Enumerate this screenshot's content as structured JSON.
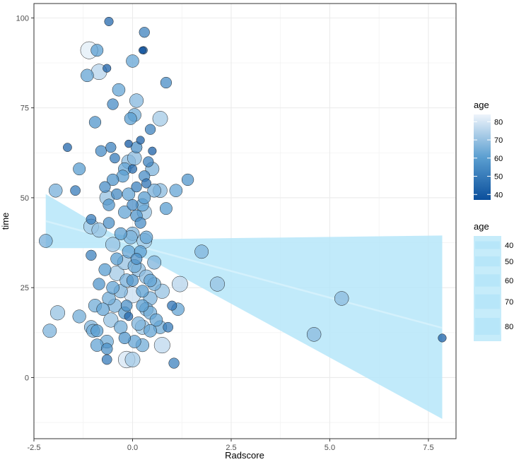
{
  "chart_data": {
    "type": "scatter",
    "xlabel": "Radscore",
    "ylabel": "time",
    "xlim": [
      -2.5,
      8.2
    ],
    "ylim": [
      -17,
      104
    ],
    "x_ticks": [
      {
        "value": -2.5,
        "label": "-2.5"
      },
      {
        "value": 0,
        "label": "0.0"
      },
      {
        "value": 2.5,
        "label": "2.5"
      },
      {
        "value": 5,
        "label": "5.0"
      },
      {
        "value": 7.5,
        "label": "7.5"
      }
    ],
    "y_ticks": [
      {
        "value": 0,
        "label": "0"
      },
      {
        "value": 25,
        "label": "25"
      },
      {
        "value": 50,
        "label": "50"
      },
      {
        "value": 75,
        "label": "75"
      },
      {
        "value": 100,
        "label": "100"
      }
    ],
    "color_legend": {
      "title": "age",
      "min": 37,
      "max": 84,
      "ticks": [
        {
          "value": 80,
          "label": "80"
        },
        {
          "value": 70,
          "label": "70"
        },
        {
          "value": 60,
          "label": "60"
        },
        {
          "value": 50,
          "label": "50"
        },
        {
          "value": 40,
          "label": "40"
        }
      ],
      "low_color": "#0b4f9c",
      "high_color": "#e9f1fb"
    },
    "size_legend": {
      "title": "age",
      "entries": [
        {
          "value": 40,
          "label": "40"
        },
        {
          "value": 50,
          "label": "50"
        },
        {
          "value": 60,
          "label": "60"
        },
        {
          "value": 70,
          "label": "70"
        },
        {
          "value": 80,
          "label": "80"
        }
      ],
      "fill": "#c6ecfa"
    },
    "regression": {
      "line": [
        {
          "x": -2.2,
          "y": 43.5
        },
        {
          "x": 7.85,
          "y": 13.8
        }
      ],
      "ci_upper": [
        {
          "x": -2.2,
          "y": 51
        },
        {
          "x": -0.5,
          "y": 40
        },
        {
          "x": 0.5,
          "y": 38.5
        },
        {
          "x": 7.85,
          "y": 39.5
        }
      ],
      "ci_lower": [
        {
          "x": -2.2,
          "y": 36
        },
        {
          "x": -0.5,
          "y": 36
        },
        {
          "x": 0.5,
          "y": 32.5
        },
        {
          "x": 7.85,
          "y": -11.5
        }
      ],
      "color": "#b6e6f9"
    },
    "points": [
      {
        "x": -0.6,
        "y": 99,
        "age": 45
      },
      {
        "x": 0.3,
        "y": 96,
        "age": 52
      },
      {
        "x": -1.1,
        "y": 91,
        "age": 82
      },
      {
        "x": -0.9,
        "y": 91,
        "age": 60
      },
      {
        "x": 0.25,
        "y": 91,
        "age": 38
      },
      {
        "x": 0.28,
        "y": 91,
        "age": 40
      },
      {
        "x": 0.0,
        "y": 88,
        "age": 62
      },
      {
        "x": -0.65,
        "y": 86,
        "age": 42
      },
      {
        "x": -1.15,
        "y": 84,
        "age": 62
      },
      {
        "x": -0.85,
        "y": 85,
        "age": 75
      },
      {
        "x": 0.85,
        "y": 82,
        "age": 55
      },
      {
        "x": -0.35,
        "y": 80,
        "age": 62
      },
      {
        "x": 0.1,
        "y": 77,
        "age": 67
      },
      {
        "x": -0.5,
        "y": 76,
        "age": 55
      },
      {
        "x": -0.05,
        "y": 72,
        "age": 60
      },
      {
        "x": 0.05,
        "y": 73,
        "age": 64
      },
      {
        "x": 0.7,
        "y": 72,
        "age": 72
      },
      {
        "x": -0.95,
        "y": 71,
        "age": 58
      },
      {
        "x": 0.45,
        "y": 69,
        "age": 52
      },
      {
        "x": 0.2,
        "y": 66,
        "age": 42
      },
      {
        "x": -0.1,
        "y": 65,
        "age": 40
      },
      {
        "x": -1.65,
        "y": 64,
        "age": 44
      },
      {
        "x": -0.55,
        "y": 64,
        "age": 52
      },
      {
        "x": 0.1,
        "y": 64,
        "age": 56
      },
      {
        "x": -0.8,
        "y": 63,
        "age": 55
      },
      {
        "x": 0.5,
        "y": 63,
        "age": 42
      },
      {
        "x": -0.45,
        "y": 61,
        "age": 50
      },
      {
        "x": -0.1,
        "y": 60,
        "age": 68
      },
      {
        "x": 0.05,
        "y": 61,
        "age": 68
      },
      {
        "x": 0.4,
        "y": 60,
        "age": 52
      },
      {
        "x": -0.2,
        "y": 58,
        "age": 62
      },
      {
        "x": 0.0,
        "y": 58,
        "age": 45
      },
      {
        "x": -1.35,
        "y": 58,
        "age": 60
      },
      {
        "x": 0.5,
        "y": 58,
        "age": 66
      },
      {
        "x": -0.25,
        "y": 56,
        "age": 60
      },
      {
        "x": 0.3,
        "y": 56,
        "age": 55
      },
      {
        "x": 1.4,
        "y": 55,
        "age": 58
      },
      {
        "x": -0.5,
        "y": 55,
        "age": 58
      },
      {
        "x": 0.35,
        "y": 54,
        "age": 48
      },
      {
        "x": -0.7,
        "y": 53,
        "age": 55
      },
      {
        "x": 0.1,
        "y": 53,
        "age": 52
      },
      {
        "x": -1.95,
        "y": 52,
        "age": 65
      },
      {
        "x": -1.45,
        "y": 52,
        "age": 50
      },
      {
        "x": 1.1,
        "y": 52,
        "age": 62
      },
      {
        "x": -0.4,
        "y": 51,
        "age": 54
      },
      {
        "x": -0.1,
        "y": 51,
        "age": 62
      },
      {
        "x": 0.55,
        "y": 52,
        "age": 65
      },
      {
        "x": 0.7,
        "y": 52,
        "age": 68
      },
      {
        "x": -0.65,
        "y": 50,
        "age": 70
      },
      {
        "x": 0.3,
        "y": 50,
        "age": 60
      },
      {
        "x": -0.6,
        "y": 48,
        "age": 58
      },
      {
        "x": 0.0,
        "y": 48,
        "age": 55
      },
      {
        "x": 0.25,
        "y": 48,
        "age": 62
      },
      {
        "x": 0.85,
        "y": 47,
        "age": 60
      },
      {
        "x": -0.2,
        "y": 46,
        "age": 62
      },
      {
        "x": 0.3,
        "y": 46,
        "age": 70
      },
      {
        "x": 0.1,
        "y": 45,
        "age": 58
      },
      {
        "x": -1.05,
        "y": 44,
        "age": 50
      },
      {
        "x": -0.6,
        "y": 43,
        "age": 56
      },
      {
        "x": 0.2,
        "y": 43,
        "age": 55
      },
      {
        "x": -1.05,
        "y": 42,
        "age": 72
      },
      {
        "x": -0.85,
        "y": 41,
        "age": 70
      },
      {
        "x": -0.3,
        "y": 40,
        "age": 60
      },
      {
        "x": 0.0,
        "y": 40,
        "age": 66
      },
      {
        "x": -0.05,
        "y": 39,
        "age": 66
      },
      {
        "x": 0.35,
        "y": 39,
        "age": 62
      },
      {
        "x": -2.2,
        "y": 38,
        "age": 65
      },
      {
        "x": 0.3,
        "y": 38,
        "age": 72
      },
      {
        "x": -0.5,
        "y": 37,
        "age": 70
      },
      {
        "x": -0.1,
        "y": 35,
        "age": 62
      },
      {
        "x": 0.2,
        "y": 35,
        "age": 60
      },
      {
        "x": 1.75,
        "y": 35,
        "age": 66
      },
      {
        "x": -1.05,
        "y": 34,
        "age": 52
      },
      {
        "x": -0.4,
        "y": 33,
        "age": 60
      },
      {
        "x": 0.1,
        "y": 33,
        "age": 56
      },
      {
        "x": -0.2,
        "y": 32,
        "age": 70
      },
      {
        "x": 0.55,
        "y": 32,
        "age": 66
      },
      {
        "x": 0.05,
        "y": 31,
        "age": 64
      },
      {
        "x": -0.7,
        "y": 30,
        "age": 60
      },
      {
        "x": 0.15,
        "y": 30,
        "age": 68
      },
      {
        "x": -0.4,
        "y": 29,
        "age": 72
      },
      {
        "x": 0.35,
        "y": 28,
        "age": 68
      },
      {
        "x": 0.45,
        "y": 27,
        "age": 62
      },
      {
        "x": -0.15,
        "y": 27,
        "age": 65
      },
      {
        "x": 0.0,
        "y": 27,
        "age": 58
      },
      {
        "x": -0.85,
        "y": 26,
        "age": 58
      },
      {
        "x": 1.2,
        "y": 26,
        "age": 75
      },
      {
        "x": 2.15,
        "y": 26,
        "age": 70
      },
      {
        "x": 0.55,
        "y": 26,
        "age": 64
      },
      {
        "x": -0.5,
        "y": 25,
        "age": 62
      },
      {
        "x": -0.3,
        "y": 24,
        "age": 66
      },
      {
        "x": 0.25,
        "y": 24,
        "age": 60
      },
      {
        "x": 0.75,
        "y": 24,
        "age": 70
      },
      {
        "x": 0.0,
        "y": 23,
        "age": 78
      },
      {
        "x": -0.6,
        "y": 22,
        "age": 64
      },
      {
        "x": 0.45,
        "y": 22,
        "age": 66
      },
      {
        "x": 5.3,
        "y": 22,
        "age": 68
      },
      {
        "x": -0.95,
        "y": 20,
        "age": 64
      },
      {
        "x": -0.45,
        "y": 20,
        "age": 66
      },
      {
        "x": -0.15,
        "y": 20,
        "age": 56
      },
      {
        "x": 0.25,
        "y": 20,
        "age": 60
      },
      {
        "x": 1.0,
        "y": 20,
        "age": 48
      },
      {
        "x": -0.75,
        "y": 19,
        "age": 62
      },
      {
        "x": 0.35,
        "y": 19,
        "age": 66
      },
      {
        "x": 1.15,
        "y": 19,
        "age": 62
      },
      {
        "x": -1.9,
        "y": 18,
        "age": 70
      },
      {
        "x": -0.2,
        "y": 18,
        "age": 60
      },
      {
        "x": 0.45,
        "y": 18,
        "age": 64
      },
      {
        "x": -1.35,
        "y": 17,
        "age": 64
      },
      {
        "x": -0.1,
        "y": 17,
        "age": 44
      },
      {
        "x": 0.6,
        "y": 16,
        "age": 62
      },
      {
        "x": -0.55,
        "y": 16,
        "age": 70
      },
      {
        "x": 0.15,
        "y": 15,
        "age": 66
      },
      {
        "x": -1.05,
        "y": 14,
        "age": 66
      },
      {
        "x": -0.3,
        "y": 14,
        "age": 64
      },
      {
        "x": 0.25,
        "y": 14,
        "age": 70
      },
      {
        "x": 0.7,
        "y": 14,
        "age": 64
      },
      {
        "x": 0.9,
        "y": 14,
        "age": 50
      },
      {
        "x": -2.1,
        "y": 13,
        "age": 66
      },
      {
        "x": -1.0,
        "y": 13,
        "age": 64
      },
      {
        "x": -0.9,
        "y": 13,
        "age": 60
      },
      {
        "x": 0.45,
        "y": 13,
        "age": 62
      },
      {
        "x": 4.6,
        "y": 12,
        "age": 68
      },
      {
        "x": -0.2,
        "y": 11,
        "age": 58
      },
      {
        "x": 7.85,
        "y": 11,
        "age": 42
      },
      {
        "x": -0.65,
        "y": 10,
        "age": 64
      },
      {
        "x": 0.05,
        "y": 10,
        "age": 62
      },
      {
        "x": 0.25,
        "y": 9,
        "age": 64
      },
      {
        "x": 0.75,
        "y": 9,
        "age": 76
      },
      {
        "x": -0.9,
        "y": 9,
        "age": 62
      },
      {
        "x": -0.65,
        "y": 8,
        "age": 56
      },
      {
        "x": -0.65,
        "y": 5,
        "age": 50
      },
      {
        "x": -0.15,
        "y": 5,
        "age": 80
      },
      {
        "x": 0.0,
        "y": 5,
        "age": 72
      },
      {
        "x": 1.05,
        "y": 4,
        "age": 52
      }
    ]
  }
}
